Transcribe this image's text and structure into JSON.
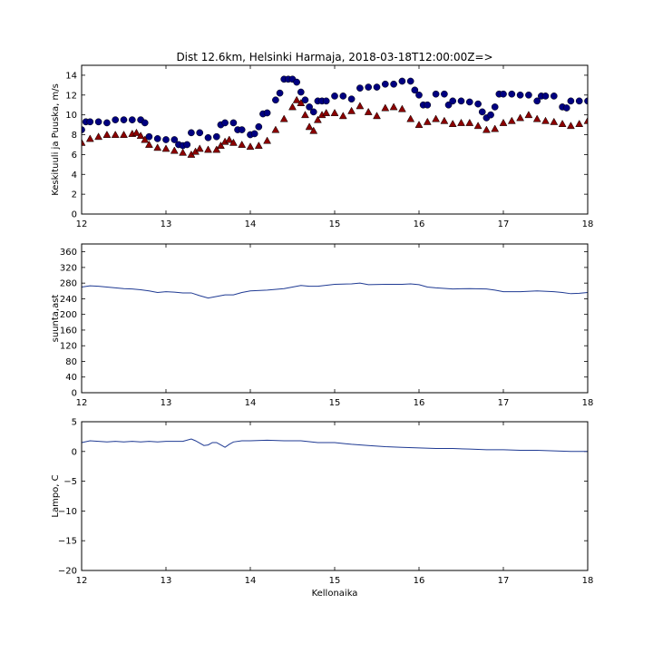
{
  "figure": {
    "title": "Dist 12.6km, Helsinki Harmaja, 2018-03-18T12:00:00Z=>"
  },
  "chart_data": [
    {
      "type": "scatter",
      "title": "Dist 12.6km, Helsinki Harmaja, 2018-03-18T12:00:00Z=>",
      "ylabel": "Keskituuli ja Puuska, m/s",
      "xlabel": "",
      "xlim": [
        12,
        18
      ],
      "ylim": [
        0,
        15
      ],
      "xticks": [
        12,
        13,
        14,
        15,
        16,
        17,
        18
      ],
      "yticks": [
        0,
        2,
        4,
        6,
        8,
        10,
        12,
        14
      ],
      "grid": false,
      "series": [
        {
          "marker": "circle",
          "color": "#000080",
          "x": [
            12.0,
            12.05,
            12.1,
            12.2,
            12.3,
            12.4,
            12.5,
            12.6,
            12.7,
            12.75,
            12.8,
            12.9,
            13.0,
            13.1,
            13.15,
            13.2,
            13.25,
            13.3,
            13.4,
            13.5,
            13.6,
            13.65,
            13.7,
            13.8,
            13.85,
            13.9,
            14.0,
            14.05,
            14.1,
            14.15,
            14.2,
            14.3,
            14.35,
            14.4,
            14.45,
            14.5,
            14.55,
            14.6,
            14.65,
            14.7,
            14.75,
            14.8,
            14.85,
            14.9,
            15.0,
            15.1,
            15.2,
            15.3,
            15.4,
            15.5,
            15.6,
            15.7,
            15.8,
            15.9,
            15.95,
            16.0,
            16.05,
            16.1,
            16.2,
            16.3,
            16.35,
            16.4,
            16.5,
            16.6,
            16.7,
            16.75,
            16.8,
            16.85,
            16.9,
            16.95,
            17.0,
            17.1,
            17.2,
            17.3,
            17.4,
            17.45,
            17.5,
            17.6,
            17.7,
            17.75,
            17.8,
            17.9,
            18.0
          ],
          "y": [
            8.5,
            9.3,
            9.3,
            9.3,
            9.2,
            9.5,
            9.5,
            9.5,
            9.5,
            9.2,
            7.8,
            7.6,
            7.5,
            7.5,
            7.0,
            6.9,
            7.0,
            8.2,
            8.2,
            7.7,
            7.8,
            9.0,
            9.2,
            9.2,
            8.5,
            8.5,
            8.0,
            8.1,
            8.8,
            10.1,
            10.2,
            11.5,
            12.2,
            13.6,
            13.6,
            13.6,
            13.3,
            12.3,
            11.5,
            10.8,
            10.3,
            11.4,
            11.4,
            11.4,
            11.9,
            11.9,
            11.6,
            12.7,
            12.8,
            12.8,
            13.1,
            13.1,
            13.4,
            13.4,
            12.5,
            12.0,
            11.0,
            11.0,
            12.1,
            12.1,
            11.0,
            11.4,
            11.4,
            11.3,
            11.1,
            10.3,
            9.7,
            10.0,
            10.8,
            12.1,
            12.1,
            12.1,
            12.0,
            12.0,
            11.4,
            11.9,
            11.9,
            11.9,
            10.8,
            10.7,
            11.4,
            11.4,
            11.4
          ]
        },
        {
          "marker": "triangle",
          "color": "#8b0000",
          "x": [
            12.0,
            12.1,
            12.2,
            12.3,
            12.4,
            12.5,
            12.6,
            12.65,
            12.7,
            12.75,
            12.8,
            12.9,
            13.0,
            13.1,
            13.2,
            13.3,
            13.35,
            13.4,
            13.5,
            13.6,
            13.65,
            13.7,
            13.75,
            13.8,
            13.9,
            14.0,
            14.1,
            14.2,
            14.3,
            14.4,
            14.5,
            14.55,
            14.6,
            14.65,
            14.7,
            14.75,
            14.8,
            14.85,
            14.9,
            15.0,
            15.1,
            15.2,
            15.3,
            15.4,
            15.5,
            15.6,
            15.7,
            15.8,
            15.9,
            16.0,
            16.1,
            16.2,
            16.3,
            16.4,
            16.5,
            16.6,
            16.7,
            16.8,
            16.9,
            17.0,
            17.1,
            17.2,
            17.3,
            17.4,
            17.5,
            17.6,
            17.7,
            17.8,
            17.9,
            18.0
          ],
          "y": [
            7.2,
            7.6,
            7.8,
            8.0,
            8.0,
            8.0,
            8.1,
            8.2,
            7.9,
            7.5,
            7.0,
            6.7,
            6.6,
            6.4,
            6.2,
            6.0,
            6.3,
            6.6,
            6.5,
            6.5,
            6.9,
            7.3,
            7.5,
            7.2,
            7.0,
            6.8,
            6.9,
            7.4,
            8.5,
            9.6,
            10.8,
            11.5,
            11.2,
            10.0,
            8.8,
            8.4,
            9.5,
            10.0,
            10.2,
            10.2,
            9.9,
            10.4,
            10.9,
            10.3,
            9.9,
            10.7,
            10.8,
            10.6,
            9.6,
            9.0,
            9.3,
            9.6,
            9.4,
            9.1,
            9.2,
            9.2,
            8.9,
            8.5,
            8.6,
            9.2,
            9.4,
            9.7,
            10.0,
            9.6,
            9.4,
            9.3,
            9.1,
            8.9,
            9.1,
            9.4
          ]
        }
      ]
    },
    {
      "type": "line",
      "ylabel": "suunta,ast",
      "xlabel": "",
      "xlim": [
        12,
        18
      ],
      "ylim": [
        0,
        380
      ],
      "xticks": [
        12,
        13,
        14,
        15,
        16,
        17,
        18
      ],
      "yticks": [
        0,
        40,
        80,
        120,
        160,
        200,
        240,
        280,
        320,
        360
      ],
      "grid": false,
      "series": [
        {
          "color": "#1f3a93",
          "x": [
            12.0,
            12.1,
            12.2,
            12.3,
            12.4,
            12.5,
            12.6,
            12.7,
            12.8,
            12.9,
            13.0,
            13.1,
            13.2,
            13.3,
            13.4,
            13.5,
            13.6,
            13.7,
            13.8,
            13.9,
            14.0,
            14.2,
            14.4,
            14.5,
            14.6,
            14.7,
            14.8,
            15.0,
            15.2,
            15.3,
            15.4,
            15.6,
            15.8,
            15.9,
            16.0,
            16.1,
            16.2,
            16.4,
            16.6,
            16.8,
            16.9,
            17.0,
            17.2,
            17.4,
            17.6,
            17.7,
            17.8,
            17.9,
            18.0
          ],
          "y": [
            270,
            273,
            272,
            270,
            268,
            266,
            265,
            263,
            260,
            256,
            258,
            257,
            255,
            255,
            248,
            242,
            246,
            250,
            250,
            256,
            260,
            262,
            266,
            270,
            274,
            272,
            272,
            277,
            278,
            280,
            276,
            277,
            277,
            278,
            276,
            270,
            268,
            265,
            266,
            265,
            262,
            258,
            258,
            260,
            258,
            256,
            253,
            254,
            256
          ]
        }
      ]
    },
    {
      "type": "line",
      "ylabel": "Lampo, C",
      "xlabel": "Kellonaika",
      "xlim": [
        12,
        18
      ],
      "ylim": [
        -20,
        5
      ],
      "xticks": [
        12,
        13,
        14,
        15,
        16,
        17,
        18
      ],
      "yticks": [
        5,
        0,
        -5,
        -10,
        -15,
        -20
      ],
      "grid": false,
      "series": [
        {
          "color": "#1f3a93",
          "x": [
            12.0,
            12.1,
            12.2,
            12.3,
            12.4,
            12.5,
            12.6,
            12.7,
            12.8,
            12.9,
            13.0,
            13.1,
            13.2,
            13.3,
            13.35,
            13.4,
            13.45,
            13.5,
            13.55,
            13.6,
            13.65,
            13.7,
            13.75,
            13.8,
            13.9,
            14.0,
            14.2,
            14.4,
            14.6,
            14.8,
            15.0,
            15.2,
            15.4,
            15.6,
            15.8,
            16.0,
            16.2,
            16.4,
            16.6,
            16.8,
            17.0,
            17.2,
            17.4,
            17.6,
            17.8,
            18.0
          ],
          "y": [
            1.5,
            1.8,
            1.7,
            1.6,
            1.7,
            1.6,
            1.7,
            1.6,
            1.7,
            1.6,
            1.7,
            1.7,
            1.7,
            2.1,
            1.8,
            1.4,
            1.0,
            1.1,
            1.5,
            1.5,
            1.1,
            0.7,
            1.2,
            1.6,
            1.8,
            1.8,
            1.9,
            1.8,
            1.8,
            1.5,
            1.5,
            1.2,
            1.0,
            0.8,
            0.7,
            0.6,
            0.5,
            0.5,
            0.4,
            0.3,
            0.3,
            0.2,
            0.2,
            0.1,
            0.0,
            0.0
          ]
        }
      ]
    }
  ]
}
